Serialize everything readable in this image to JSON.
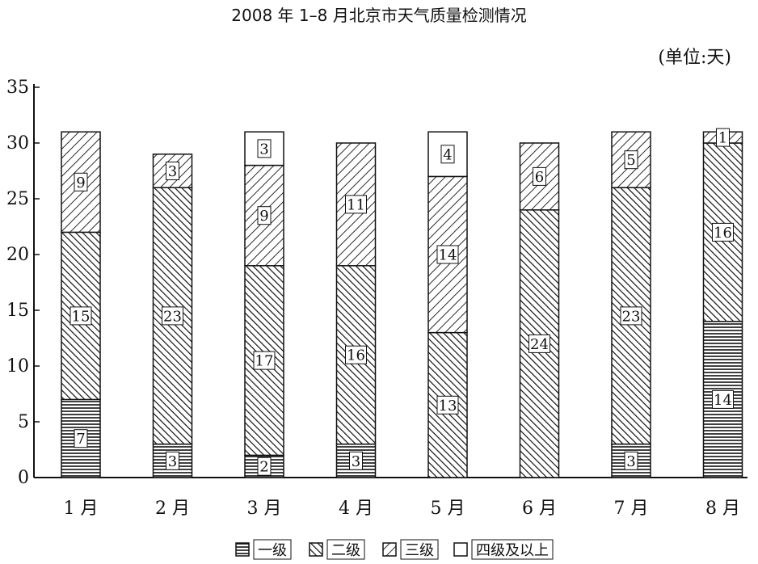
{
  "chart_data": {
    "type": "bar",
    "stacked": true,
    "title": "2008 年 1–8 月北京市天气质量检测情况",
    "unit_note": "(单位:天)",
    "categories": [
      "1 月",
      "2 月",
      "3 月",
      "4 月",
      "5 月",
      "6 月",
      "7 月",
      "8 月"
    ],
    "ylim": [
      0,
      35
    ],
    "yticks": [
      0,
      5,
      10,
      15,
      20,
      25,
      30,
      35
    ],
    "series": [
      {
        "name": "一级",
        "pattern": "horizontal",
        "values": [
          7,
          3,
          2,
          3,
          0,
          0,
          3,
          14
        ]
      },
      {
        "name": "二级",
        "pattern": "diagonal-dense",
        "values": [
          15,
          23,
          17,
          16,
          13,
          24,
          23,
          16
        ]
      },
      {
        "name": "三级",
        "pattern": "diagonal-sparse",
        "values": [
          9,
          3,
          9,
          11,
          14,
          6,
          5,
          1
        ]
      },
      {
        "name": "四级及以上",
        "pattern": "empty",
        "values": [
          0,
          0,
          3,
          0,
          4,
          0,
          0,
          0
        ]
      }
    ],
    "legend_position": "bottom"
  }
}
